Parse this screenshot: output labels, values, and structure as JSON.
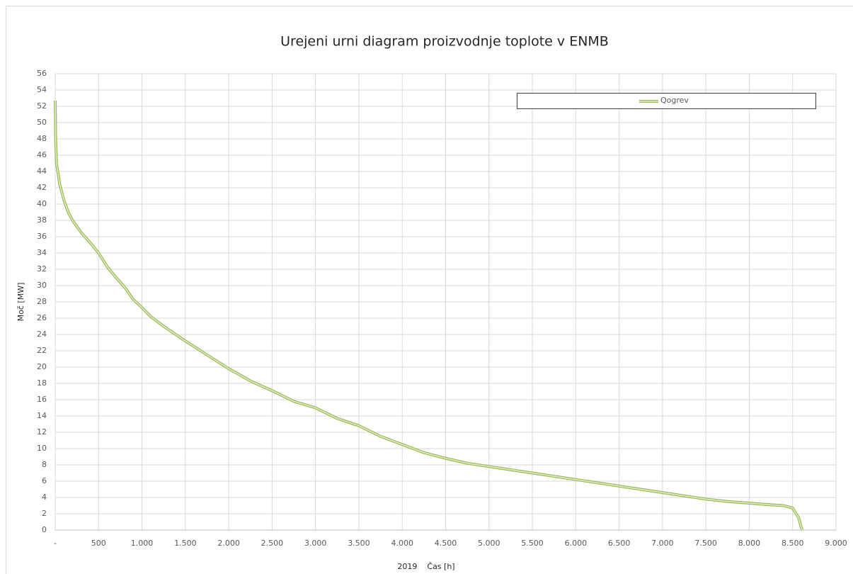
{
  "chart_data": {
    "type": "line",
    "title": "Urejeni urni diagram proizvodnje toplote v ENMB",
    "xlabel": "2019    Čas [h]",
    "ylabel": "Moč [MW]",
    "legend": "top-right",
    "grid": true,
    "xlim": [
      0,
      9000
    ],
    "xticks": [
      {
        "value": 0,
        "label": "-"
      },
      500,
      {
        "value": 1000,
        "label": "1.000"
      },
      {
        "value": 1500,
        "label": "1.500"
      },
      {
        "value": 2000,
        "label": "2.000"
      },
      {
        "value": 2500,
        "label": "2.500"
      },
      {
        "value": 3000,
        "label": "3.000"
      },
      {
        "value": 3500,
        "label": "3.500"
      },
      {
        "value": 4000,
        "label": "4.000"
      },
      {
        "value": 4500,
        "label": "4.500"
      },
      {
        "value": 5000,
        "label": "5.000"
      },
      {
        "value": 5500,
        "label": "5.500"
      },
      {
        "value": 6000,
        "label": "6.000"
      },
      {
        "value": 6500,
        "label": "6.500"
      },
      {
        "value": 7000,
        "label": "7.000"
      },
      {
        "value": 7500,
        "label": "7.500"
      },
      {
        "value": 8000,
        "label": "8.000"
      },
      {
        "value": 8500,
        "label": "8.500"
      },
      {
        "value": 9000,
        "label": "9.000"
      }
    ],
    "ylim": [
      0,
      56
    ],
    "yticks": [
      0,
      2,
      4,
      6,
      8,
      10,
      12,
      14,
      16,
      18,
      20,
      22,
      24,
      26,
      28,
      30,
      32,
      34,
      36,
      38,
      40,
      42,
      44,
      46,
      48,
      50,
      52,
      54,
      56
    ],
    "x": [
      0,
      5,
      15,
      30,
      50,
      100,
      150,
      200,
      300,
      400,
      500,
      600,
      700,
      800,
      900,
      1000,
      1100,
      1250,
      1500,
      1750,
      2000,
      2250,
      2500,
      2750,
      3000,
      3250,
      3500,
      3750,
      4000,
      4250,
      4500,
      4750,
      5000,
      5500,
      6000,
      6500,
      7000,
      7500,
      7750,
      8000,
      8250,
      8400,
      8500,
      8570,
      8600,
      8610
    ],
    "series": [
      {
        "name": "Qogrev",
        "color": "#9bbb59",
        "values": [
          52.7,
          48,
          45,
          44,
          42.5,
          40.5,
          39,
          38,
          36.5,
          35.3,
          34,
          32.3,
          31,
          29.8,
          28.3,
          27.3,
          26.2,
          25,
          23.2,
          21.5,
          19.8,
          18.3,
          17.1,
          15.8,
          15,
          13.7,
          12.8,
          11.5,
          10.5,
          9.5,
          8.8,
          8.2,
          7.8,
          7,
          6.2,
          5.4,
          4.6,
          3.8,
          3.5,
          3.3,
          3.1,
          3.0,
          2.7,
          1.5,
          0.3,
          0
        ]
      }
    ]
  }
}
